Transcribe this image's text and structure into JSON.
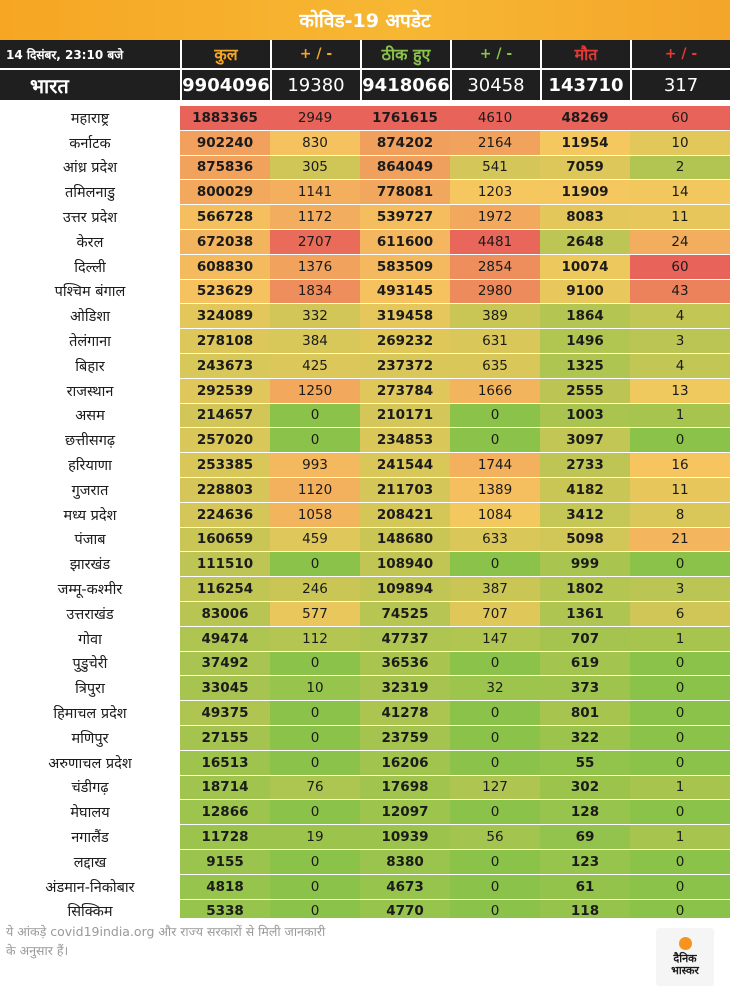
{
  "title": "कोविड-19 अपडेट",
  "header": {
    "timestamp": "14 दिसंबर, 23:10 बजे",
    "total": "कुल",
    "total_delta": "+ / -",
    "recovered": "ठीक हुए",
    "recovered_delta": "+ / -",
    "deaths": "मौत",
    "deaths_delta": "+ / -"
  },
  "colors": {
    "header_bg": "#1f1f1f",
    "banner": "#f6a623",
    "total_header": "#f5a623",
    "recovered_header": "#8bc34a",
    "deaths_header": "#e53935",
    "scale_high": "#e8635a",
    "scale_mid": "#f6c85f",
    "scale_low": "#8bc34a"
  },
  "chart_data": {
    "type": "table",
    "columns": [
      "",
      "कुल",
      "+ / -",
      "ठीक हुए",
      "+ / -",
      "मौत",
      "+ / -"
    ],
    "national": {
      "name": "भारत",
      "total": 9904096,
      "total_delta": 19380,
      "recovered": 9418066,
      "recovered_delta": 30458,
      "deaths": 143710,
      "deaths_delta": 317
    },
    "rows": [
      {
        "name": "महाराष्ट्र",
        "total": 1883365,
        "total_delta": 2949,
        "recovered": 1761615,
        "recovered_delta": 4610,
        "deaths": 48269,
        "deaths_delta": 60
      },
      {
        "name": "कर्नाटक",
        "total": 902240,
        "total_delta": 830,
        "recovered": 874202,
        "recovered_delta": 2164,
        "deaths": 11954,
        "deaths_delta": 10
      },
      {
        "name": "आंध्र प्रदेश",
        "total": 875836,
        "total_delta": 305,
        "recovered": 864049,
        "recovered_delta": 541,
        "deaths": 7059,
        "deaths_delta": 2
      },
      {
        "name": "तमिलनाडु",
        "total": 800029,
        "total_delta": 1141,
        "recovered": 778081,
        "recovered_delta": 1203,
        "deaths": 11909,
        "deaths_delta": 14
      },
      {
        "name": "उत्तर प्रदेश",
        "total": 566728,
        "total_delta": 1172,
        "recovered": 539727,
        "recovered_delta": 1972,
        "deaths": 8083,
        "deaths_delta": 11
      },
      {
        "name": "केरल",
        "total": 672038,
        "total_delta": 2707,
        "recovered": 611600,
        "recovered_delta": 4481,
        "deaths": 2648,
        "deaths_delta": 24
      },
      {
        "name": "दिल्ली",
        "total": 608830,
        "total_delta": 1376,
        "recovered": 583509,
        "recovered_delta": 2854,
        "deaths": 10074,
        "deaths_delta": 60
      },
      {
        "name": "पश्चिम बंगाल",
        "total": 523629,
        "total_delta": 1834,
        "recovered": 493145,
        "recovered_delta": 2980,
        "deaths": 9100,
        "deaths_delta": 43
      },
      {
        "name": "ओडिशा",
        "total": 324089,
        "total_delta": 332,
        "recovered": 319458,
        "recovered_delta": 389,
        "deaths": 1864,
        "deaths_delta": 4
      },
      {
        "name": "तेलंगाना",
        "total": 278108,
        "total_delta": 384,
        "recovered": 269232,
        "recovered_delta": 631,
        "deaths": 1496,
        "deaths_delta": 3
      },
      {
        "name": "बिहार",
        "total": 243673,
        "total_delta": 425,
        "recovered": 237372,
        "recovered_delta": 635,
        "deaths": 1325,
        "deaths_delta": 4
      },
      {
        "name": "राजस्थान",
        "total": 292539,
        "total_delta": 1250,
        "recovered": 273784,
        "recovered_delta": 1666,
        "deaths": 2555,
        "deaths_delta": 13
      },
      {
        "name": "असम",
        "total": 214657,
        "total_delta": 0,
        "recovered": 210171,
        "recovered_delta": 0,
        "deaths": 1003,
        "deaths_delta": 1
      },
      {
        "name": "छत्तीसगढ़",
        "total": 257020,
        "total_delta": 0,
        "recovered": 234853,
        "recovered_delta": 0,
        "deaths": 3097,
        "deaths_delta": 0
      },
      {
        "name": "हरियाणा",
        "total": 253385,
        "total_delta": 993,
        "recovered": 241544,
        "recovered_delta": 1744,
        "deaths": 2733,
        "deaths_delta": 16
      },
      {
        "name": "गुजरात",
        "total": 228803,
        "total_delta": 1120,
        "recovered": 211703,
        "recovered_delta": 1389,
        "deaths": 4182,
        "deaths_delta": 11
      },
      {
        "name": "मध्य प्रदेश",
        "total": 224636,
        "total_delta": 1058,
        "recovered": 208421,
        "recovered_delta": 1084,
        "deaths": 3412,
        "deaths_delta": 8
      },
      {
        "name": "पंजाब",
        "total": 160659,
        "total_delta": 459,
        "recovered": 148680,
        "recovered_delta": 633,
        "deaths": 5098,
        "deaths_delta": 21
      },
      {
        "name": "झारखंड",
        "total": 111510,
        "total_delta": 0,
        "recovered": 108940,
        "recovered_delta": 0,
        "deaths": 999,
        "deaths_delta": 0
      },
      {
        "name": "जम्मू-कश्मीर",
        "total": 116254,
        "total_delta": 246,
        "recovered": 109894,
        "recovered_delta": 387,
        "deaths": 1802,
        "deaths_delta": 3
      },
      {
        "name": "उत्तराखंड",
        "total": 83006,
        "total_delta": 577,
        "recovered": 74525,
        "recovered_delta": 707,
        "deaths": 1361,
        "deaths_delta": 6
      },
      {
        "name": "गोवा",
        "total": 49474,
        "total_delta": 112,
        "recovered": 47737,
        "recovered_delta": 147,
        "deaths": 707,
        "deaths_delta": 1
      },
      {
        "name": "पुडुचेरी",
        "total": 37492,
        "total_delta": 0,
        "recovered": 36536,
        "recovered_delta": 0,
        "deaths": 619,
        "deaths_delta": 0
      },
      {
        "name": "त्रिपुरा",
        "total": 33045,
        "total_delta": 10,
        "recovered": 32319,
        "recovered_delta": 32,
        "deaths": 373,
        "deaths_delta": 0
      },
      {
        "name": "हिमाचल प्रदेश",
        "total": 49375,
        "total_delta": 0,
        "recovered": 41278,
        "recovered_delta": 0,
        "deaths": 801,
        "deaths_delta": 0
      },
      {
        "name": "मणिपुर",
        "total": 27155,
        "total_delta": 0,
        "recovered": 23759,
        "recovered_delta": 0,
        "deaths": 322,
        "deaths_delta": 0
      },
      {
        "name": "अरुणाचल प्रदेश",
        "total": 16513,
        "total_delta": 0,
        "recovered": 16206,
        "recovered_delta": 0,
        "deaths": 55,
        "deaths_delta": 0
      },
      {
        "name": "चंडीगढ़",
        "total": 18714,
        "total_delta": 76,
        "recovered": 17698,
        "recovered_delta": 127,
        "deaths": 302,
        "deaths_delta": 1
      },
      {
        "name": "मेघालय",
        "total": 12866,
        "total_delta": 0,
        "recovered": 12097,
        "recovered_delta": 0,
        "deaths": 128,
        "deaths_delta": 0
      },
      {
        "name": "नगालैंड",
        "total": 11728,
        "total_delta": 19,
        "recovered": 10939,
        "recovered_delta": 56,
        "deaths": 69,
        "deaths_delta": 1
      },
      {
        "name": "लद्दाख",
        "total": 9155,
        "total_delta": 0,
        "recovered": 8380,
        "recovered_delta": 0,
        "deaths": 123,
        "deaths_delta": 0
      },
      {
        "name": "अंडमान-निकोबार",
        "total": 4818,
        "total_delta": 0,
        "recovered": 4673,
        "recovered_delta": 0,
        "deaths": 61,
        "deaths_delta": 0
      },
      {
        "name": "सिक्किम",
        "total": 5338,
        "total_delta": 0,
        "recovered": 4770,
        "recovered_delta": 0,
        "deaths": 118,
        "deaths_delta": 0
      }
    ]
  },
  "footer": {
    "note": "ये आंकड़े covid19india.org और राज्य सरकारों से मिली जानकारी के अनुसार हैं।",
    "logo_line1": "दैनिक",
    "logo_line2": "भास्कर"
  }
}
